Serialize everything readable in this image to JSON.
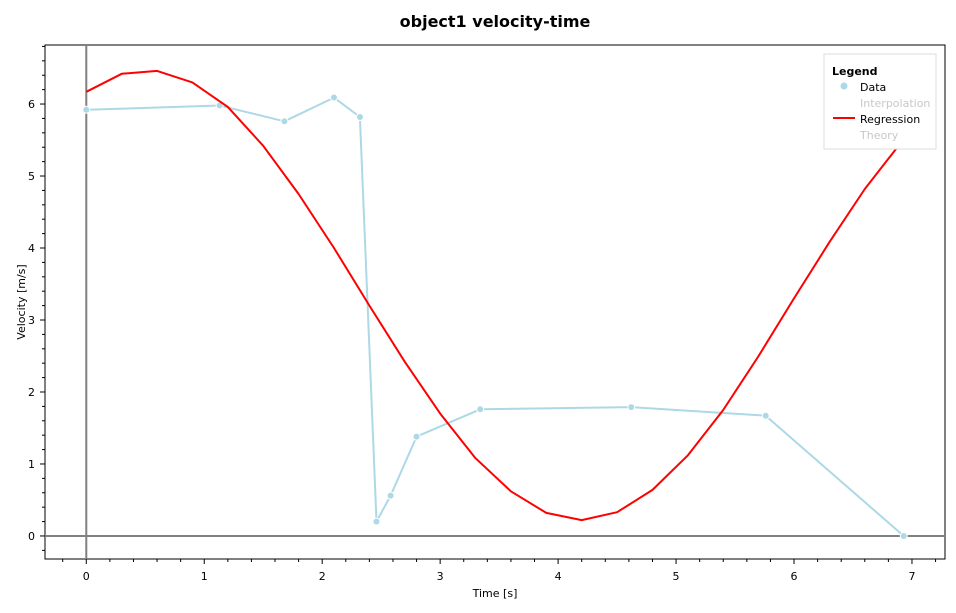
{
  "chart_data": {
    "type": "line",
    "title": "object1 velocity-time",
    "xlabel": "Time [s]",
    "ylabel": "Velocity [m/s]",
    "xlim": [
      -0.35,
      7.28
    ],
    "ylim": [
      -0.32,
      6.82
    ],
    "xticks": [
      0,
      1,
      2,
      3,
      4,
      5,
      6,
      7
    ],
    "yticks": [
      0,
      1,
      2,
      3,
      4,
      5,
      6
    ],
    "legend": {
      "title": "Legend",
      "placement": "top-right",
      "entries": [
        {
          "label": "Data",
          "enabled": true,
          "marker": "circle",
          "color": "#add8e6"
        },
        {
          "label": "Interpolation",
          "enabled": false
        },
        {
          "label": "Regression",
          "enabled": true,
          "marker": "line",
          "color": "#ff0000"
        },
        {
          "label": "Theory",
          "enabled": false
        }
      ]
    },
    "series": [
      {
        "name": "Data",
        "color": "#add8e6",
        "markers": true,
        "x": [
          0,
          1.13,
          1.68,
          2.1,
          2.32,
          2.46,
          2.58,
          2.8,
          3.34,
          4.62,
          5.76,
          6.93
        ],
        "y": [
          5.92,
          5.98,
          5.76,
          6.09,
          5.82,
          0.2,
          0.56,
          1.38,
          1.76,
          1.79,
          1.67,
          0.0
        ]
      },
      {
        "name": "Regression",
        "color": "#ff0000",
        "markers": false,
        "x": [
          0,
          0.3,
          0.6,
          0.9,
          1.2,
          1.5,
          1.8,
          2.1,
          2.4,
          2.7,
          3.0,
          3.3,
          3.6,
          3.9,
          4.2,
          4.5,
          4.8,
          5.1,
          5.4,
          5.7,
          6.0,
          6.3,
          6.6,
          6.9
        ],
        "y": [
          6.17,
          6.42,
          6.46,
          6.3,
          5.96,
          5.42,
          4.75,
          4.0,
          3.2,
          2.42,
          1.7,
          1.08,
          0.62,
          0.32,
          0.22,
          0.33,
          0.64,
          1.12,
          1.75,
          2.5,
          3.3,
          4.08,
          4.82,
          5.45
        ]
      }
    ],
    "grid": false,
    "zero_lines": true
  }
}
